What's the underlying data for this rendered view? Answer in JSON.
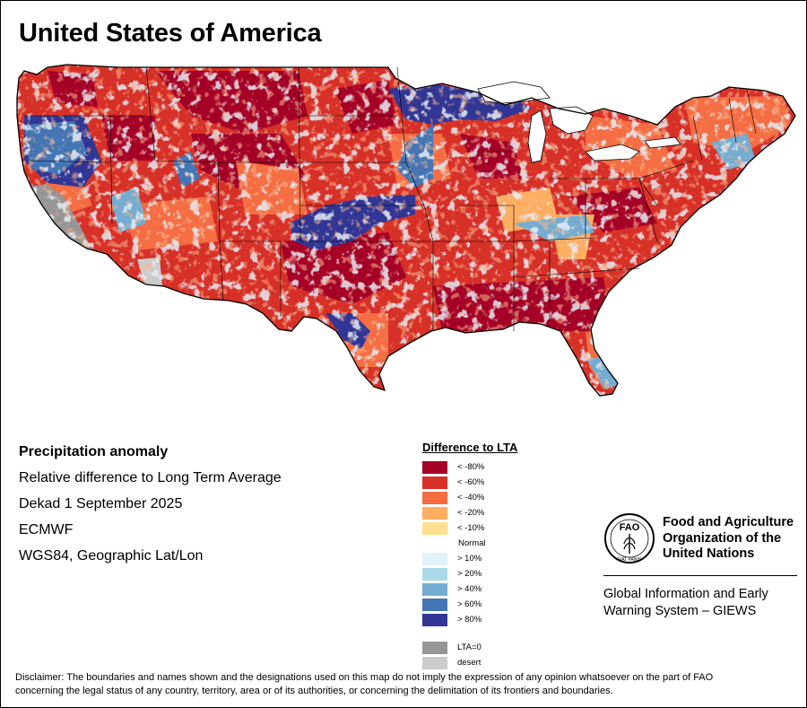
{
  "map": {
    "title": "United States of America"
  },
  "info": {
    "heading": "Precipitation anomaly",
    "line1": "Relative difference to Long Term Average",
    "line2": "Dekad 1 September 2025",
    "line3": "ECMWF",
    "line4": "WGS84, Geographic Lat/Lon"
  },
  "legend": {
    "title": "Difference to LTA",
    "dry_classes": [
      {
        "label": "< -80%",
        "color": "#a50026"
      },
      {
        "label": "< -60%",
        "color": "#d73027"
      },
      {
        "label": "< -40%",
        "color": "#f46d43"
      },
      {
        "label": "< -20%",
        "color": "#fdae61"
      },
      {
        "label": "< -10%",
        "color": "#fee090"
      }
    ],
    "normal_label": "Normal",
    "wet_classes": [
      {
        "label": "> 10%",
        "color": "#e0f3f8"
      },
      {
        "label": "> 20%",
        "color": "#abd9e9"
      },
      {
        "label": "> 40%",
        "color": "#74add1"
      },
      {
        "label": "> 60%",
        "color": "#4575b4"
      },
      {
        "label": "> 80%",
        "color": "#313695"
      }
    ],
    "special_classes": [
      {
        "label": "LTA=0",
        "color": "#969696"
      },
      {
        "label": "desert",
        "color": "#cccccc"
      }
    ]
  },
  "organization": {
    "name_line1": "Food and Agriculture",
    "name_line2": "Organization of the",
    "name_line3": "United Nations",
    "logo_text": "FAO",
    "logo_motto": "FIAT PANIS",
    "system_line1": "Global Information and Early",
    "system_line2": "Warning System – GIEWS"
  },
  "disclaimer": {
    "line1": "Disclaimer: The boundaries and names shown and the designations used on this map do not imply the expression of any opinion whatsoever on the part of FAO",
    "line2": "concerning the legal status of any country, territory, area or of its authorities, or concerning the delimitation of its frontiers and boundaries."
  }
}
